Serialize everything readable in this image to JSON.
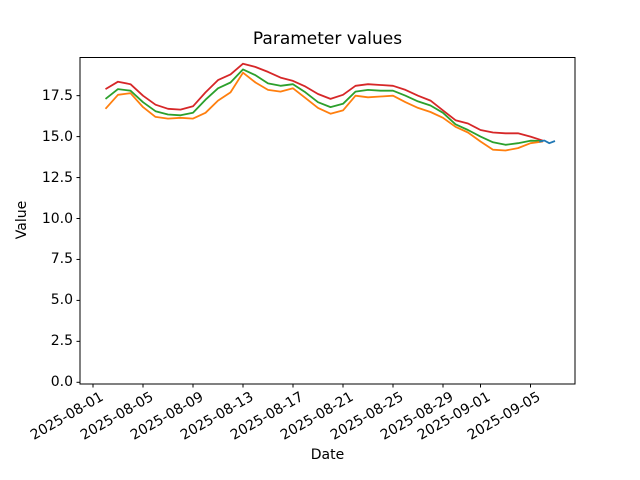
{
  "figure": {
    "background": "#ffffff"
  },
  "chart_data": {
    "type": "line",
    "title": "Parameter values",
    "xlabel": "Date",
    "ylabel": "Value",
    "ylim": [
      0,
      19.8
    ],
    "grid": false,
    "legend": false,
    "y_ticks": [
      {
        "value": 0.0,
        "label": "0.0"
      },
      {
        "value": 2.5,
        "label": "2.5"
      },
      {
        "value": 5.0,
        "label": "5.0"
      },
      {
        "value": 7.5,
        "label": "7.5"
      },
      {
        "value": 10.0,
        "label": "10.0"
      },
      {
        "value": 12.5,
        "label": "12.5"
      },
      {
        "value": 15.0,
        "label": "15.0"
      },
      {
        "value": 17.5,
        "label": "17.5"
      }
    ],
    "x_ticks": [
      {
        "day": 0,
        "label": "2025-08-01"
      },
      {
        "day": 4,
        "label": "2025-08-05"
      },
      {
        "day": 8,
        "label": "2025-08-09"
      },
      {
        "day": 12,
        "label": "2025-08-13"
      },
      {
        "day": 16,
        "label": "2025-08-17"
      },
      {
        "day": 20,
        "label": "2025-08-21"
      },
      {
        "day": 24,
        "label": "2025-08-25"
      },
      {
        "day": 28,
        "label": "2025-08-29"
      },
      {
        "day": 31,
        "label": "2025-09-01"
      },
      {
        "day": 35,
        "label": "2025-09-05"
      }
    ],
    "dates": [
      "2025-08-02",
      "2025-08-03",
      "2025-08-04",
      "2025-08-05",
      "2025-08-06",
      "2025-08-07",
      "2025-08-08",
      "2025-08-09",
      "2025-08-10",
      "2025-08-11",
      "2025-08-12",
      "2025-08-13",
      "2025-08-14",
      "2025-08-15",
      "2025-08-16",
      "2025-08-17",
      "2025-08-18",
      "2025-08-19",
      "2025-08-20",
      "2025-08-21",
      "2025-08-22",
      "2025-08-23",
      "2025-08-24",
      "2025-08-25",
      "2025-08-26",
      "2025-08-27",
      "2025-08-28",
      "2025-08-29",
      "2025-08-30",
      "2025-08-31",
      "2025-09-01",
      "2025-09-02",
      "2025-09-03",
      "2025-09-04",
      "2025-09-05",
      "2025-09-06"
    ],
    "start_day_offset": 1,
    "series": [
      {
        "name": "series-red",
        "color": "#d62728",
        "values": [
          17.9,
          18.35,
          18.2,
          17.5,
          16.95,
          16.7,
          16.65,
          16.85,
          17.7,
          18.45,
          18.8,
          19.45,
          19.25,
          18.95,
          18.6,
          18.4,
          18.05,
          17.6,
          17.3,
          17.55,
          18.1,
          18.2,
          18.15,
          18.1,
          17.85,
          17.5,
          17.2,
          16.6,
          16.0,
          15.8,
          15.4,
          15.25,
          15.2,
          15.2,
          15.0,
          14.75
        ]
      },
      {
        "name": "series-green",
        "color": "#2ca02c",
        "values": [
          17.3,
          17.9,
          17.8,
          17.1,
          16.55,
          16.35,
          16.3,
          16.45,
          17.25,
          17.95,
          18.3,
          19.1,
          18.75,
          18.25,
          18.1,
          18.2,
          17.7,
          17.1,
          16.8,
          17.0,
          17.75,
          17.85,
          17.8,
          17.8,
          17.5,
          17.15,
          16.9,
          16.45,
          15.75,
          15.4,
          15.0,
          14.65,
          14.5,
          14.6,
          14.75,
          14.73
        ]
      },
      {
        "name": "series-orange",
        "color": "#ff7f0e",
        "values": [
          16.7,
          17.55,
          17.65,
          16.8,
          16.2,
          16.1,
          16.15,
          16.1,
          16.45,
          17.2,
          17.7,
          18.9,
          18.3,
          17.85,
          17.75,
          17.95,
          17.35,
          16.75,
          16.4,
          16.6,
          17.5,
          17.4,
          17.45,
          17.5,
          17.1,
          16.75,
          16.5,
          16.15,
          15.6,
          15.25,
          14.7,
          14.2,
          14.15,
          14.3,
          14.6,
          14.7
        ]
      }
    ],
    "extra_series": {
      "name": "series-blue",
      "color": "#1f77b4",
      "date_span": [
        "2025-09-06",
        "2025-09-07"
      ],
      "day_offsets": [
        35.7,
        36.1,
        36.5,
        36.96
      ],
      "values": [
        14.68,
        14.76,
        14.6,
        14.73
      ]
    }
  }
}
